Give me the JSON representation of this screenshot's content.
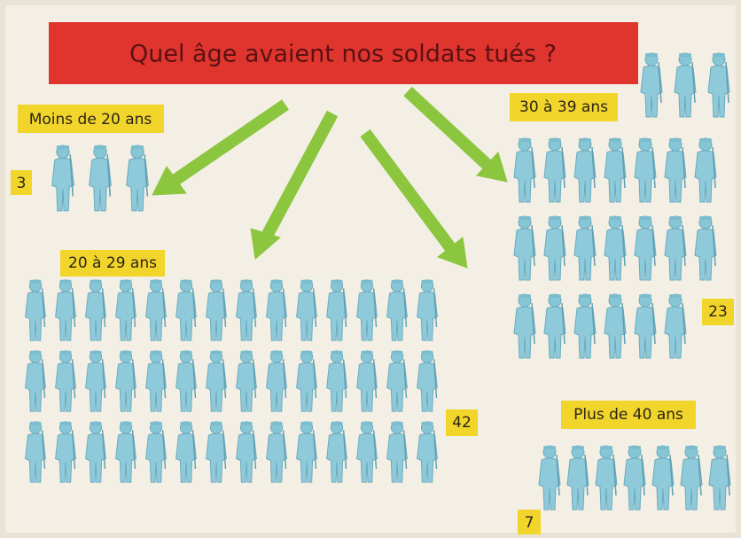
{
  "title": "Quel âge avaient nos soldats tués ?",
  "groups": [
    {
      "label": "Moins de 20 ans",
      "count": 3
    },
    {
      "label": "20 à 29 ans",
      "count": 42
    },
    {
      "label": "30 à 39 ans",
      "count": 23
    },
    {
      "label": "Plus de 40 ans",
      "count": 7
    }
  ]
}
